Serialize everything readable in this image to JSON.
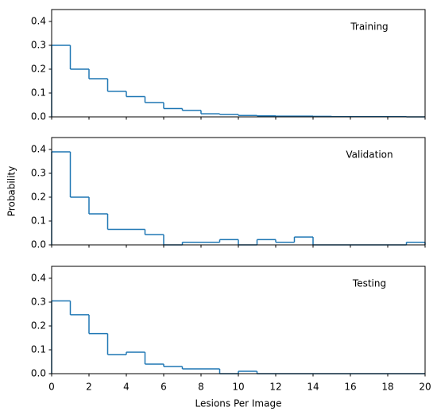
{
  "chart_data": [
    {
      "type": "histogram",
      "annotation": "Training",
      "bins": [
        0,
        1,
        2,
        3,
        4,
        5,
        6,
        7,
        8,
        9,
        10,
        11,
        12,
        13,
        14,
        15,
        16,
        17,
        18,
        19,
        20
      ],
      "values": [
        0.3,
        0.2,
        0.16,
        0.107,
        0.085,
        0.06,
        0.035,
        0.027,
        0.013,
        0.01,
        0.006,
        0.004,
        0.003,
        0.003,
        0.002,
        0.001,
        0.001,
        0.001,
        0.001,
        0.0
      ],
      "color": "#1f77b4",
      "xlim": [
        0,
        20
      ],
      "ylim": [
        0,
        0.45
      ],
      "xticks": [
        0,
        2,
        4,
        6,
        8,
        10,
        12,
        14,
        16,
        18,
        20
      ],
      "xtick_labels": false,
      "yticks": [
        {
          "value": 0,
          "label": "0.0"
        },
        0.1,
        0.2,
        0.3,
        0.4
      ]
    },
    {
      "type": "histogram",
      "annotation": "Validation",
      "ylabel": "Probability",
      "bins": [
        0,
        1,
        2,
        3,
        4,
        5,
        6,
        7,
        8,
        9,
        10,
        11,
        12,
        13,
        14,
        15,
        16,
        17,
        18,
        19,
        20
      ],
      "values": [
        0.39,
        0.2,
        0.13,
        0.065,
        0.065,
        0.043,
        0,
        0.011,
        0.011,
        0.022,
        0,
        0.022,
        0.011,
        0.033,
        0,
        0,
        0,
        0,
        0,
        0.011
      ],
      "color": "#1f77b4",
      "xlim": [
        0,
        20
      ],
      "ylim": [
        0,
        0.45
      ],
      "xticks": [
        0,
        2,
        4,
        6,
        8,
        10,
        12,
        14,
        16,
        18,
        20
      ],
      "xtick_labels": false,
      "yticks": [
        {
          "value": 0,
          "label": "0.0"
        },
        0.1,
        0.2,
        0.3,
        0.4
      ]
    },
    {
      "type": "histogram",
      "annotation": "Testing",
      "xlabel": "Lesions Per Image",
      "bins": [
        0,
        1,
        2,
        3,
        4,
        5,
        6,
        7,
        8,
        9,
        10,
        11,
        12,
        13,
        14,
        15,
        16,
        17,
        18,
        19,
        20
      ],
      "values": [
        0.305,
        0.247,
        0.168,
        0.08,
        0.09,
        0.04,
        0.03,
        0.02,
        0.02,
        0,
        0.01,
        0,
        0,
        0,
        0,
        0,
        0,
        0,
        0,
        0
      ],
      "color": "#1f77b4",
      "xlim": [
        0,
        20
      ],
      "ylim": [
        0,
        0.45
      ],
      "xticks": [
        0,
        2,
        4,
        6,
        8,
        10,
        12,
        14,
        16,
        18,
        20
      ],
      "xtick_labels": true,
      "yticks": [
        {
          "value": 0,
          "label": "0.0"
        },
        0.1,
        0.2,
        0.3,
        0.4
      ]
    }
  ]
}
